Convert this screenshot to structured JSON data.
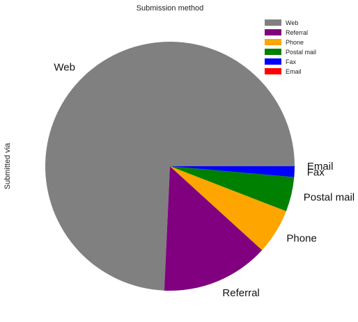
{
  "chart_data": {
    "type": "pie",
    "title": "Submission method",
    "ylabel": "Submitted via",
    "categories": [
      "Web",
      "Referral",
      "Phone",
      "Postal mail",
      "Fax",
      "Email"
    ],
    "values": [
      74.5,
      14.0,
      5.9,
      4.5,
      1.4,
      0.0
    ],
    "colors": [
      "#808080",
      "#800080",
      "#FFA500",
      "#008000",
      "#0000FF",
      "#FF0000"
    ],
    "start_angle_deg": 0,
    "direction": "counterclockwise",
    "legend_position": "top-right"
  }
}
